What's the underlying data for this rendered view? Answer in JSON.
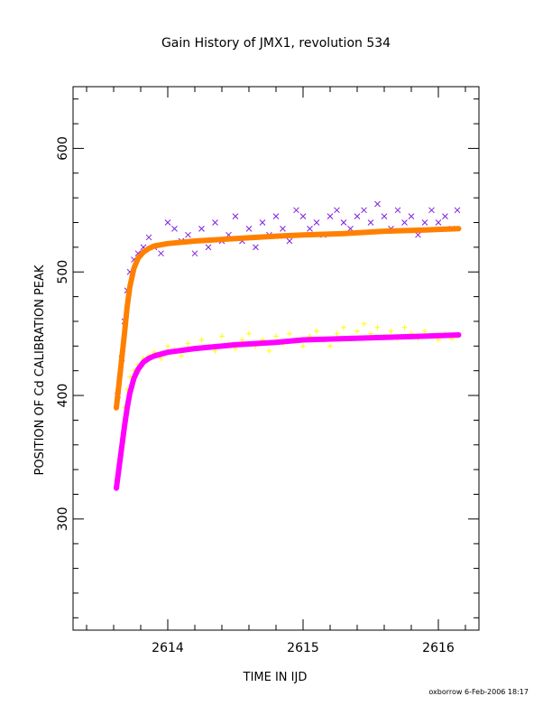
{
  "chart_data": {
    "type": "scatter",
    "title": "Gain History of JMX1, revolution 534",
    "xlabel": "TIME IN IJD",
    "ylabel": "POSITION OF Cd CALIBRATION PEAK",
    "xlim": [
      2613.3,
      2616.3
    ],
    "ylim": [
      210,
      650
    ],
    "xticks": [
      2614,
      2615,
      2616
    ],
    "yticks": [
      300,
      400,
      500,
      600
    ],
    "grid": false,
    "footer": "oxborrow  6-Feb-2006 18:17",
    "series": [
      {
        "marker": "x",
        "color": "#8020e0",
        "x": [
          2613.63,
          2613.66,
          2613.68,
          2613.7,
          2613.72,
          2613.75,
          2613.78,
          2613.82,
          2613.86,
          2613.9,
          2613.95,
          2614.0,
          2614.05,
          2614.1,
          2614.15,
          2614.2,
          2614.25,
          2614.3,
          2614.35,
          2614.4,
          2614.45,
          2614.5,
          2614.55,
          2614.6,
          2614.65,
          2614.7,
          2614.75,
          2614.8,
          2614.85,
          2614.9,
          2614.95,
          2615.0,
          2615.05,
          2615.1,
          2615.15,
          2615.2,
          2615.25,
          2615.3,
          2615.35,
          2615.4,
          2615.45,
          2615.5,
          2615.55,
          2615.6,
          2615.65,
          2615.7,
          2615.75,
          2615.8,
          2615.85,
          2615.9,
          2615.95,
          2616.0,
          2616.05,
          2616.1,
          2616.14
        ],
        "y": [
          400,
          430,
          460,
          485,
          500,
          510,
          515,
          520,
          528,
          520,
          515,
          540,
          535,
          525,
          530,
          515,
          535,
          520,
          540,
          525,
          530,
          545,
          525,
          535,
          520,
          540,
          530,
          545,
          535,
          525,
          550,
          545,
          535,
          540,
          530,
          545,
          550,
          540,
          535,
          545,
          550,
          540,
          555,
          545,
          535,
          550,
          540,
          545,
          530,
          540,
          550,
          540,
          545,
          535,
          550
        ]
      },
      {
        "marker": "+",
        "color": "#ffff00",
        "x": [
          2613.63,
          2613.66,
          2613.68,
          2613.7,
          2613.72,
          2613.75,
          2613.78,
          2613.82,
          2613.86,
          2613.9,
          2613.95,
          2614.0,
          2614.05,
          2614.1,
          2614.15,
          2614.2,
          2614.25,
          2614.3,
          2614.35,
          2614.4,
          2614.45,
          2614.5,
          2614.55,
          2614.6,
          2614.65,
          2614.7,
          2614.75,
          2614.8,
          2614.85,
          2614.9,
          2614.95,
          2615.0,
          2615.05,
          2615.1,
          2615.15,
          2615.2,
          2615.25,
          2615.3,
          2615.35,
          2615.4,
          2615.45,
          2615.5,
          2615.55,
          2615.6,
          2615.65,
          2615.7,
          2615.75,
          2615.8,
          2615.85,
          2615.9,
          2615.95,
          2616.0,
          2616.05,
          2616.1,
          2616.14
        ],
        "y": [
          335,
          365,
          390,
          405,
          415,
          420,
          425,
          430,
          432,
          435,
          430,
          440,
          437,
          432,
          442,
          438,
          445,
          440,
          436,
          448,
          442,
          438,
          445,
          450,
          440,
          445,
          436,
          448,
          442,
          450,
          445,
          440,
          448,
          452,
          445,
          440,
          450,
          455,
          446,
          452,
          458,
          450,
          455,
          448,
          452,
          446,
          455,
          450,
          446,
          452,
          448,
          445,
          450,
          446,
          448
        ]
      },
      {
        "marker": "line",
        "color": "#ff8000",
        "x": [
          2613.62,
          2613.65,
          2613.68,
          2613.7,
          2613.72,
          2613.75,
          2613.78,
          2613.82,
          2613.86,
          2613.9,
          2614.0,
          2614.2,
          2614.5,
          2614.8,
          2615.0,
          2615.3,
          2615.6,
          2615.9,
          2616.15
        ],
        "y": [
          390,
          420,
          450,
          472,
          488,
          503,
          511,
          516,
          519,
          521,
          523,
          525,
          527,
          529,
          530,
          531,
          533,
          534,
          535
        ]
      },
      {
        "marker": "line",
        "color": "#ff00ff",
        "x": [
          2613.62,
          2613.65,
          2613.68,
          2613.7,
          2613.72,
          2613.75,
          2613.78,
          2613.82,
          2613.86,
          2613.9,
          2614.0,
          2614.2,
          2614.5,
          2614.8,
          2615.0,
          2615.3,
          2615.6,
          2615.9,
          2616.15
        ],
        "y": [
          325,
          350,
          375,
          390,
          402,
          414,
          421,
          427,
          430,
          432,
          435,
          438,
          441,
          443,
          445,
          446,
          447,
          448,
          449
        ]
      }
    ]
  }
}
